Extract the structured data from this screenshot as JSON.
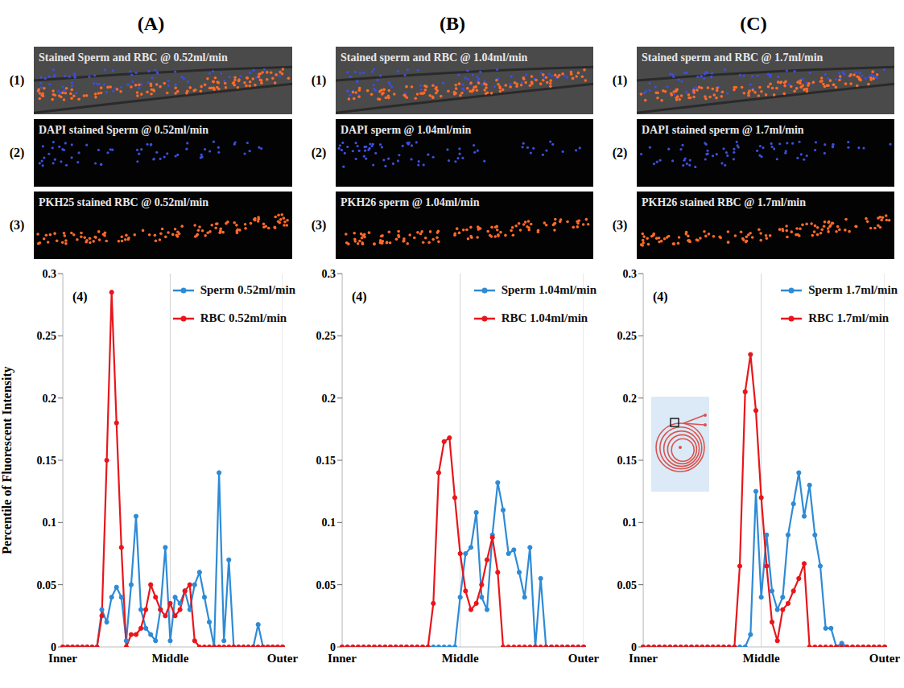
{
  "chart_data": [
    {
      "type": "line",
      "panel": "(A)",
      "chart_label": "(4)",
      "y_label": "Percentile of Fluorescent Intensity",
      "images": [
        {
          "label": "(1)",
          "text": "Stained Sperm and RBC @ 0.52ml/min"
        },
        {
          "label": "(2)",
          "text": "DAPI stained Sperm @ 0.52ml/min"
        },
        {
          "label": "(3)",
          "text": "PKH25 stained RBC @ 0.52ml/min"
        }
      ],
      "categories": [
        "Inner",
        null,
        null,
        null,
        null,
        null,
        null,
        null,
        null,
        null,
        null,
        null,
        null,
        null,
        null,
        null,
        null,
        null,
        null,
        null,
        null,
        null,
        "Middle",
        null,
        null,
        null,
        null,
        null,
        null,
        null,
        null,
        null,
        null,
        null,
        null,
        null,
        null,
        null,
        null,
        null,
        null,
        null,
        null,
        null,
        null,
        "Outer"
      ],
      "ylim": [
        0,
        0.3
      ],
      "yticks": [
        0,
        0.05,
        0.1,
        0.15,
        0.2,
        0.25,
        0.3
      ],
      "grid": true,
      "legend": "upper right",
      "marker": "circle",
      "series": [
        {
          "name": "Sperm 0.52ml/min",
          "color": "#2e8bd6",
          "values": [
            0,
            0,
            0,
            0,
            0,
            0,
            0,
            0,
            0.03,
            0.02,
            0.04,
            0.048,
            0.04,
            0.005,
            0.05,
            0.105,
            0.03,
            0.015,
            0.01,
            0.005,
            0.03,
            0.08,
            0.005,
            0.04,
            0.035,
            0.045,
            0.03,
            0.05,
            0.06,
            0.04,
            0.02,
            0,
            0.14,
            0.005,
            0.07,
            0,
            0,
            0,
            0,
            0,
            0.018,
            0,
            0,
            0,
            0,
            0
          ]
        },
        {
          "name": "RBC 0.52ml/min",
          "color": "#e8161b",
          "values": [
            0,
            0,
            0,
            0,
            0,
            0,
            0,
            0,
            0.025,
            0.15,
            0.285,
            0.18,
            0.08,
            0,
            0.01,
            0.01,
            0.015,
            0.03,
            0.05,
            0.04,
            0.03,
            0.025,
            0.035,
            0.025,
            0.03,
            0.045,
            0.05,
            0.005,
            0,
            0,
            0,
            0,
            0,
            0,
            0,
            0,
            0,
            0,
            0,
            0,
            0,
            0,
            0,
            0,
            0,
            0
          ]
        }
      ]
    },
    {
      "type": "line",
      "panel": "(B)",
      "chart_label": "(4)",
      "images": [
        {
          "label": "(1)",
          "text": "Stained sperm and RBC @ 1.04ml/min"
        },
        {
          "label": "(2)",
          "text": "DAPI sperm @ 1.04ml/min"
        },
        {
          "label": "(3)",
          "text": "PKH26 sperm @ 1.04ml/min"
        }
      ],
      "categories": [
        "Inner",
        null,
        null,
        null,
        null,
        null,
        null,
        null,
        null,
        null,
        null,
        null,
        null,
        null,
        null,
        null,
        null,
        null,
        null,
        null,
        null,
        null,
        "Middle",
        null,
        null,
        null,
        null,
        null,
        null,
        null,
        null,
        null,
        null,
        null,
        null,
        null,
        null,
        null,
        null,
        null,
        null,
        null,
        null,
        null,
        null,
        "Outer"
      ],
      "ylim": [
        0,
        0.3
      ],
      "yticks": [
        0,
        0.05,
        0.1,
        0.15,
        0.2,
        0.25,
        0.3
      ],
      "grid": true,
      "legend": "upper right",
      "marker": "circle",
      "series": [
        {
          "name": "Sperm 1.04ml/min",
          "color": "#2e8bd6",
          "values": [
            0,
            0,
            0,
            0,
            0,
            0,
            0,
            0,
            0,
            0,
            0,
            0,
            0,
            0,
            0,
            0,
            0,
            0,
            0,
            0,
            0,
            0,
            0.04,
            0.075,
            0.08,
            0.108,
            0.04,
            0.03,
            0.09,
            0.132,
            0.11,
            0.075,
            0.078,
            0.06,
            0.04,
            0.08,
            0,
            0.055,
            0,
            0,
            0,
            0,
            0,
            0,
            0,
            0
          ]
        },
        {
          "name": "RBC 1.04ml/min",
          "color": "#e8161b",
          "values": [
            0,
            0,
            0,
            0,
            0,
            0,
            0,
            0,
            0,
            0,
            0,
            0,
            0,
            0,
            0,
            0,
            0,
            0.035,
            0.14,
            0.165,
            0.168,
            0.12,
            0.075,
            0.045,
            0.03,
            0.035,
            0.05,
            0.07,
            0.088,
            0.06,
            0,
            0,
            0,
            0,
            0,
            0,
            0,
            0,
            0,
            0,
            0,
            0,
            0,
            0,
            0,
            0
          ]
        }
      ]
    },
    {
      "type": "line",
      "panel": "(C)",
      "chart_label": "(4)",
      "images": [
        {
          "label": "(1)",
          "text": "Stained sperm and RBC @ 1.7ml/min"
        },
        {
          "label": "(2)",
          "text": "DAPI stained sperm @ 1.7ml/min"
        },
        {
          "label": "(3)",
          "text": "PKH26 stained RBC @ 1.7ml/min"
        }
      ],
      "categories": [
        "Inner",
        null,
        null,
        null,
        null,
        null,
        null,
        null,
        null,
        null,
        null,
        null,
        null,
        null,
        null,
        null,
        null,
        null,
        null,
        null,
        null,
        null,
        "Middle",
        null,
        null,
        null,
        null,
        null,
        null,
        null,
        null,
        null,
        null,
        null,
        null,
        null,
        null,
        null,
        null,
        null,
        null,
        null,
        null,
        null,
        null,
        "Outer"
      ],
      "ylim": [
        0,
        0.3
      ],
      "yticks": [
        0,
        0.05,
        0.1,
        0.15,
        0.2,
        0.25,
        0.3
      ],
      "grid": true,
      "legend": "upper right",
      "marker": "circle",
      "series": [
        {
          "name": "Sperm 1.7ml/min",
          "color": "#2e8bd6",
          "values": [
            0,
            0,
            0,
            0,
            0,
            0,
            0,
            0,
            0,
            0,
            0,
            0,
            0,
            0,
            0,
            0,
            0,
            0,
            0,
            0,
            0.01,
            0.125,
            0.04,
            0.09,
            0.045,
            0.03,
            0.04,
            0.09,
            0.115,
            0.14,
            0.105,
            0.13,
            0.09,
            0.065,
            0.015,
            0.015,
            0,
            0.003,
            0,
            0,
            0,
            0,
            0,
            0,
            0,
            0
          ]
        },
        {
          "name": "RBC 1.7ml/min",
          "color": "#e8161b",
          "values": [
            0,
            0,
            0,
            0,
            0,
            0,
            0,
            0,
            0,
            0,
            0,
            0,
            0,
            0,
            0,
            0,
            0,
            0,
            0.065,
            0.205,
            0.235,
            0.19,
            0.12,
            0.065,
            0.02,
            0.005,
            0.03,
            0.035,
            0.045,
            0.055,
            0.067,
            0,
            0,
            0,
            0,
            0,
            0,
            0,
            0,
            0,
            0,
            0,
            0,
            0,
            0,
            0
          ]
        }
      ]
    }
  ]
}
